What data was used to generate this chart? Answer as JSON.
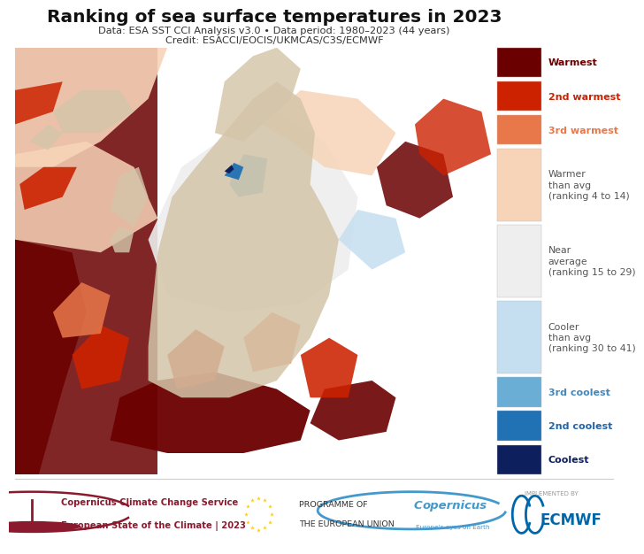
{
  "title": "Ranking of sea surface temperatures in 2023",
  "subtitle1": "Data: ESA SST CCI Analysis v3.0 • Data period: 1980–2023 (44 years)",
  "subtitle2": "Credit: ESACCI/EOCIS/UKMCAS/C3S/ECMWF",
  "background_color": "#ffffff",
  "map_bg_color": "#7a7a7a",
  "legend_items": [
    {
      "label": "Warmest",
      "color": "#6b0000",
      "text_color": "#6b0000",
      "bold": true,
      "multiline": false
    },
    {
      "label": "2nd warmest",
      "color": "#cc2200",
      "text_color": "#cc2200",
      "bold": true,
      "multiline": false
    },
    {
      "label": "3rd warmest",
      "color": "#e8784a",
      "text_color": "#e8784a",
      "bold": true,
      "multiline": false
    },
    {
      "label": "Warmer\nthan avg\n(ranking 4 to 14)",
      "color": "#f7d4b8",
      "text_color": "#555555",
      "bold": false,
      "multiline": true
    },
    {
      "label": "Near\naverage\n(ranking 15 to 29)",
      "color": "#eeeeee",
      "text_color": "#555555",
      "bold": false,
      "multiline": true
    },
    {
      "label": "Cooler\nthan avg\n(ranking 30 to 41)",
      "color": "#c5dff0",
      "text_color": "#555555",
      "bold": false,
      "multiline": true
    },
    {
      "label": "3rd coolest",
      "color": "#6aaed6",
      "text_color": "#4488bb",
      "bold": true,
      "multiline": false
    },
    {
      "label": "2nd coolest",
      "color": "#2171b5",
      "text_color": "#2266aa",
      "bold": true,
      "multiline": false
    },
    {
      "label": "Coolest",
      "color": "#0d1f5c",
      "text_color": "#0d1f5c",
      "bold": true,
      "multiline": false
    }
  ],
  "footer_c3s_line1": "Copernicus Climate Change Service",
  "footer_c3s_line2": "European State of the Climate | 2023",
  "footer_color": "#8b1a2e",
  "programme_line1": "PROGRAMME OF",
  "programme_line2": "THE EUROPEAN UNION",
  "copernicus_color": "#4499cc",
  "implemented_text": "IMPLEMENTED BY",
  "ecmwf_color": "#0066aa",
  "divider_color": "#cccccc"
}
